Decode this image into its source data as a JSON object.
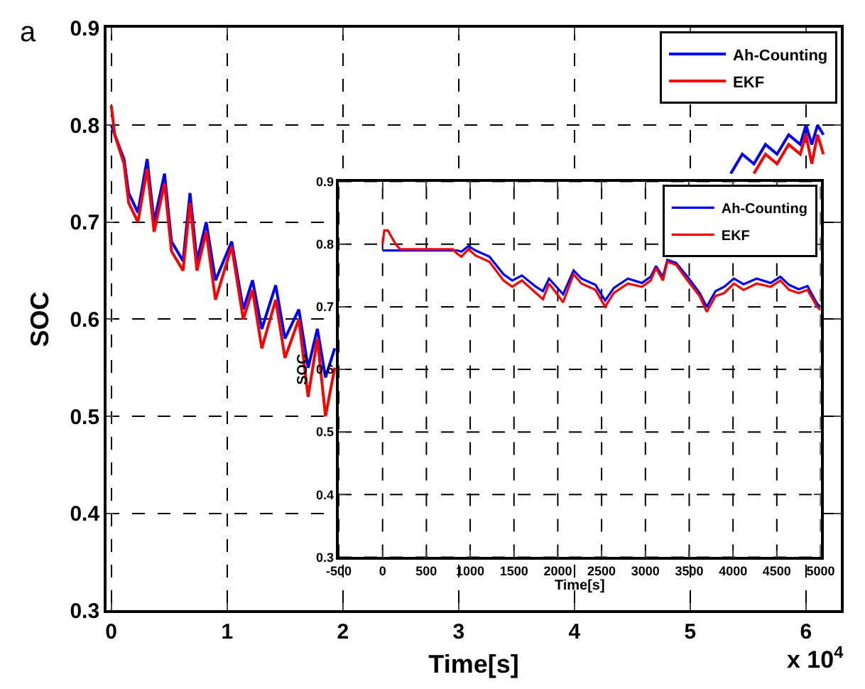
{
  "chart_data": [
    {
      "type": "line",
      "xlabel": "Time[s]",
      "ylabel": "SOC",
      "annotations": [
        "a",
        "x 10$^{4}$"
      ],
      "xlim": [
        -0.04,
        6.3
      ],
      "xticks": [
        0,
        1,
        2,
        3,
        4,
        5,
        6
      ],
      "ylim": [
        0.3,
        0.9
      ],
      "yticks": [
        0.3,
        0.4,
        0.5,
        0.6,
        0.7,
        0.8,
        0.9
      ],
      "grid": true,
      "legend": "top right",
      "series": [
        {
          "name": "Ah-Counting",
          "color": "#0000ff",
          "x": [
            0,
            0.03,
            0.11,
            0.15,
            0.23,
            0.31,
            0.37,
            0.46,
            0.52,
            0.62,
            0.68,
            0.74,
            0.82,
            0.9,
            1.04,
            1.14,
            1.22,
            1.3,
            1.42,
            1.5,
            1.62,
            1.7,
            1.78,
            1.85,
            1.93,
            3,
            5.35,
            5.45,
            5.55,
            5.65,
            5.75,
            5.85,
            5.95,
            6,
            6.05,
            6.1,
            6.15
          ],
          "values": [
            0.8,
            0.79,
            0.765,
            0.73,
            0.71,
            0.765,
            0.7,
            0.75,
            0.68,
            0.66,
            0.73,
            0.66,
            0.7,
            0.64,
            0.68,
            0.61,
            0.64,
            0.59,
            0.635,
            0.58,
            0.61,
            0.55,
            0.59,
            0.54,
            0.57,
            null,
            0.75,
            0.77,
            0.76,
            0.78,
            0.77,
            0.79,
            0.78,
            0.8,
            0.78,
            0.8,
            0.79
          ]
        },
        {
          "name": "EKF",
          "color": "#ff0000",
          "x": [
            0,
            0.03,
            0.11,
            0.15,
            0.23,
            0.31,
            0.37,
            0.46,
            0.52,
            0.62,
            0.68,
            0.74,
            0.82,
            0.9,
            1.04,
            1.14,
            1.22,
            1.3,
            1.42,
            1.5,
            1.62,
            1.7,
            1.78,
            1.85,
            1.93,
            3,
            5.55,
            5.65,
            5.75,
            5.85,
            5.95,
            6,
            6.05,
            6.1,
            6.15
          ],
          "values": [
            0.82,
            0.79,
            0.76,
            0.72,
            0.7,
            0.755,
            0.69,
            0.74,
            0.67,
            0.65,
            0.72,
            0.65,
            0.69,
            0.62,
            0.675,
            0.6,
            0.63,
            0.57,
            0.62,
            0.56,
            0.6,
            0.52,
            0.58,
            0.5,
            0.55,
            null,
            0.75,
            0.77,
            0.76,
            0.78,
            0.77,
            0.79,
            0.76,
            0.79,
            0.77
          ]
        }
      ]
    },
    {
      "type": "line",
      "xlabel": "Time[s]",
      "ylabel": "SOC",
      "xlim": [
        -500,
        5000
      ],
      "xticks": [
        -500,
        0,
        500,
        1000,
        1500,
        2000,
        2500,
        3000,
        3500,
        4000,
        4500,
        5000
      ],
      "ylim": [
        0.3,
        0.9
      ],
      "yticks": [
        0.3,
        0.4,
        0.5,
        0.6,
        0.7,
        0.8,
        0.9
      ],
      "grid": true,
      "legend": "top right",
      "series": [
        {
          "name": "Ah-Counting",
          "color": "#0000ff",
          "x": [
            0,
            200,
            800,
            850,
            900,
            980,
            1060,
            1220,
            1380,
            1480,
            1590,
            1750,
            1830,
            1900,
            2010,
            2060,
            2180,
            2270,
            2430,
            2540,
            2640,
            2800,
            2960,
            3060,
            3120,
            3200,
            3250,
            3350,
            3480,
            3620,
            3700,
            3800,
            3900,
            4010,
            4120,
            4270,
            4430,
            4540,
            4640,
            4750,
            4850,
            4960,
            5000
          ],
          "values": [
            0.79,
            0.79,
            0.79,
            0.79,
            0.788,
            0.797,
            0.79,
            0.78,
            0.752,
            0.742,
            0.75,
            0.732,
            0.725,
            0.745,
            0.728,
            0.72,
            0.758,
            0.745,
            0.735,
            0.71,
            0.73,
            0.745,
            0.738,
            0.748,
            0.765,
            0.748,
            0.775,
            0.77,
            0.748,
            0.722,
            0.7,
            0.725,
            0.732,
            0.745,
            0.736,
            0.745,
            0.738,
            0.748,
            0.735,
            0.728,
            0.733,
            0.705,
            0.7
          ]
        },
        {
          "name": "EKF",
          "color": "#ff0000",
          "x": [
            0,
            20,
            60,
            150,
            200,
            800,
            850,
            900,
            980,
            1060,
            1220,
            1380,
            1480,
            1590,
            1750,
            1830,
            1900,
            2010,
            2060,
            2180,
            2270,
            2430,
            2540,
            2640,
            2800,
            2960,
            3060,
            3120,
            3200,
            3250,
            3350,
            3480,
            3620,
            3700,
            3800,
            3900,
            4010,
            4120,
            4270,
            4430,
            4540,
            4640,
            4750,
            4850,
            4960,
            5000
          ],
          "values": [
            0.8,
            0.822,
            0.822,
            0.8,
            0.792,
            0.792,
            0.785,
            0.78,
            0.792,
            0.782,
            0.772,
            0.742,
            0.732,
            0.742,
            0.722,
            0.712,
            0.737,
            0.717,
            0.707,
            0.752,
            0.737,
            0.727,
            0.7,
            0.722,
            0.737,
            0.732,
            0.742,
            0.762,
            0.742,
            0.772,
            0.767,
            0.742,
            0.717,
            0.692,
            0.717,
            0.722,
            0.737,
            0.727,
            0.737,
            0.732,
            0.742,
            0.727,
            0.722,
            0.727,
            0.7,
            0.695
          ]
        }
      ]
    }
  ]
}
